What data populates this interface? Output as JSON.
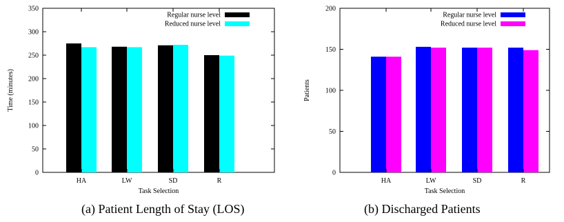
{
  "chart_data": [
    {
      "type": "bar",
      "categories": [
        "HA",
        "LW",
        "SD",
        "R"
      ],
      "series": [
        {
          "name": "Regular nurse level",
          "values": [
            275,
            268,
            271,
            250
          ],
          "color": "#000000"
        },
        {
          "name": "Reduced nurse level",
          "values": [
            267,
            267,
            272,
            249
          ],
          "color": "#00ffff"
        }
      ],
      "xlabel": "Task Selection",
      "ylabel": "Time (minutes)",
      "ylim": [
        0,
        350
      ],
      "yticks": [
        0,
        50,
        100,
        150,
        200,
        250,
        300,
        350
      ],
      "legend": "top-right",
      "caption": "(a) Patient Length of Stay (LOS)"
    },
    {
      "type": "bar",
      "categories": [
        "HA",
        "LW",
        "SD",
        "R"
      ],
      "series": [
        {
          "name": "Regular nurse level",
          "values": [
            141,
            153,
            152,
            152
          ],
          "color": "#0000ff"
        },
        {
          "name": "Reduced nurse level",
          "values": [
            141,
            152,
            152,
            149
          ],
          "color": "#ff00ff"
        }
      ],
      "xlabel": "Task Selection",
      "ylabel": "Patients",
      "ylim": [
        0,
        200
      ],
      "yticks": [
        0,
        50,
        100,
        150,
        200
      ],
      "legend": "top-right",
      "caption": "(b) Discharged Patients"
    }
  ]
}
